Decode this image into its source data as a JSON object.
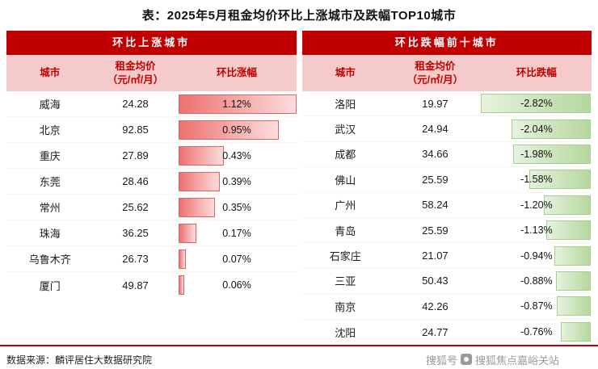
{
  "title": "表：2025年5月租金均价环比上涨城市及跌幅TOP10城市",
  "source": "数据来源：麟评居住大数据研究院",
  "watermark": {
    "prefix": "搜狐号",
    "account": "搜狐焦点嘉峪关站"
  },
  "left_table": {
    "group_header": "环比上涨城市",
    "columns": {
      "city": "城市",
      "price_line1": "租金均价",
      "price_line2": "（元/㎡/月）",
      "change": "环比涨幅"
    },
    "max_pct": 1.12,
    "rows": [
      {
        "city": "威海",
        "price": "24.28",
        "change": "1.12%",
        "pct": 1.12
      },
      {
        "city": "北京",
        "price": "92.85",
        "change": "0.95%",
        "pct": 0.95
      },
      {
        "city": "重庆",
        "price": "27.89",
        "change": "0.43%",
        "pct": 0.43
      },
      {
        "city": "东莞",
        "price": "28.46",
        "change": "0.39%",
        "pct": 0.39
      },
      {
        "city": "常州",
        "price": "25.62",
        "change": "0.35%",
        "pct": 0.35
      },
      {
        "city": "珠海",
        "price": "36.25",
        "change": "0.17%",
        "pct": 0.17
      },
      {
        "city": "乌鲁木齐",
        "price": "26.73",
        "change": "0.07%",
        "pct": 0.07
      },
      {
        "city": "厦门",
        "price": "49.87",
        "change": "0.06%",
        "pct": 0.06
      }
    ]
  },
  "right_table": {
    "group_header": "环比跌幅前十城市",
    "columns": {
      "city": "城市",
      "price_line1": "租金均价",
      "price_line2": "（元/㎡/月）",
      "change": "环比跌幅"
    },
    "max_pct": 2.82,
    "rows": [
      {
        "city": "洛阳",
        "price": "19.97",
        "change": "-2.82%",
        "pct": -2.82
      },
      {
        "city": "武汉",
        "price": "24.94",
        "change": "-2.04%",
        "pct": -2.04
      },
      {
        "city": "成都",
        "price": "34.66",
        "change": "-1.98%",
        "pct": -1.98
      },
      {
        "city": "佛山",
        "price": "25.59",
        "change": "-1.58%",
        "pct": -1.58
      },
      {
        "city": "广州",
        "price": "58.24",
        "change": "-1.20%",
        "pct": -1.2
      },
      {
        "city": "青岛",
        "price": "25.59",
        "change": "-1.13%",
        "pct": -1.13
      },
      {
        "city": "石家庄",
        "price": "21.07",
        "change": "-0.94%",
        "pct": -0.94
      },
      {
        "city": "三亚",
        "price": "50.43",
        "change": "-0.88%",
        "pct": -0.88
      },
      {
        "city": "南京",
        "price": "42.26",
        "change": "-0.87%",
        "pct": -0.87
      },
      {
        "city": "沈阳",
        "price": "24.77",
        "change": "-0.76%",
        "pct": -0.76
      }
    ]
  },
  "chart_data": [
    {
      "type": "bar",
      "title": "环比上涨城市",
      "categories": [
        "威海",
        "北京",
        "重庆",
        "东莞",
        "常州",
        "珠海",
        "乌鲁木齐",
        "厦门"
      ],
      "series": [
        {
          "name": "租金均价（元/㎡/月）",
          "values": [
            24.28,
            92.85,
            27.89,
            28.46,
            25.62,
            36.25,
            26.73,
            49.87
          ]
        },
        {
          "name": "环比涨幅(%)",
          "values": [
            1.12,
            0.95,
            0.43,
            0.39,
            0.35,
            0.17,
            0.07,
            0.06
          ]
        }
      ],
      "xlabel": "环比涨幅",
      "ylabel": "城市",
      "xlim": [
        0,
        1.12
      ],
      "legend_position": "none",
      "grid": false
    },
    {
      "type": "bar",
      "title": "环比跌幅前十城市",
      "categories": [
        "洛阳",
        "武汉",
        "成都",
        "佛山",
        "广州",
        "青岛",
        "石家庄",
        "三亚",
        "南京",
        "沈阳"
      ],
      "series": [
        {
          "name": "租金均价（元/㎡/月）",
          "values": [
            19.97,
            24.94,
            34.66,
            25.59,
            58.24,
            25.59,
            21.07,
            50.43,
            42.26,
            24.77
          ]
        },
        {
          "name": "环比跌幅(%)",
          "values": [
            -2.82,
            -2.04,
            -1.98,
            -1.58,
            -1.2,
            -1.13,
            -0.94,
            -0.88,
            -0.87,
            -0.76
          ]
        }
      ],
      "xlabel": "环比跌幅",
      "ylabel": "城市",
      "xlim": [
        -2.82,
        0
      ],
      "legend_position": "none",
      "grid": false
    }
  ],
  "colors": {
    "header_red": "#c00000",
    "header_pink": "#f5caca",
    "bar_red_start": "#ee7070",
    "bar_red_end": "#fcdede",
    "bar_red_border": "#e26161",
    "bar_green_start": "#e6f2de",
    "bar_green_end": "#b5d89e",
    "bar_green_border": "#a6cf8d",
    "divider_red": "#c00000",
    "watermark_gray": "#9b9b9b"
  }
}
